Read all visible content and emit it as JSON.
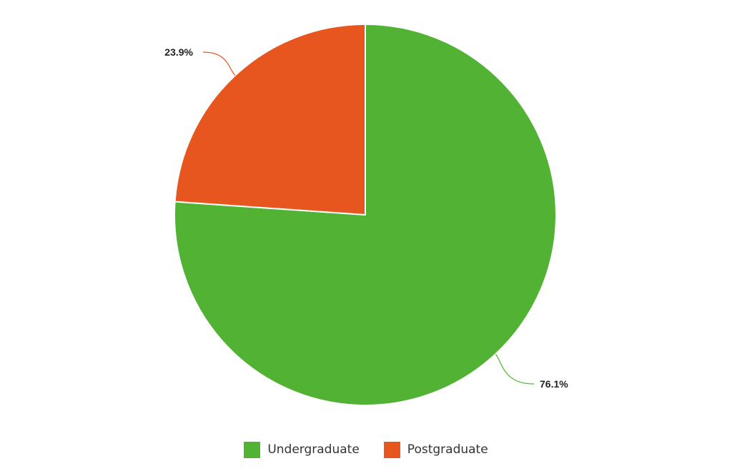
{
  "chart_data": {
    "type": "pie",
    "categories": [
      "Undergraduate",
      "Postgraduate"
    ],
    "values": [
      76.1,
      23.9
    ],
    "unit": "%",
    "data_labels": [
      "76.1%",
      "23.9%"
    ],
    "colors": [
      "#52b234",
      "#e8561f"
    ],
    "legend_position": "bottom-center",
    "title": "",
    "start_angle": "12 o'clock, clockwise"
  },
  "legend": {
    "items": [
      {
        "label": "Undergraduate",
        "color": "#52b234"
      },
      {
        "label": "Postgraduate",
        "color": "#e8561f"
      }
    ]
  }
}
